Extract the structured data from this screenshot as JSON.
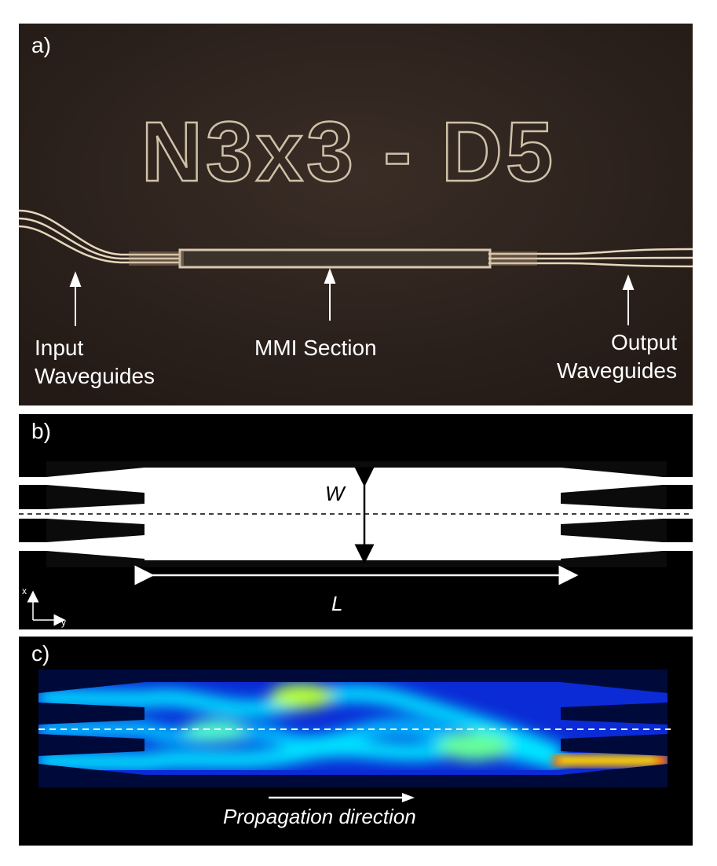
{
  "panel_a": {
    "label": "a)",
    "chip_text": "N3x3 - D5",
    "annotations": {
      "input": [
        "Input",
        "Waveguides"
      ],
      "mmi": "MMI Section",
      "output": [
        "Output",
        "Waveguides"
      ]
    }
  },
  "panel_b": {
    "label": "b)",
    "width_symbol": "W",
    "length_symbol": "L",
    "axis_x": "x",
    "axis_y": "y"
  },
  "panel_c": {
    "label": "c)",
    "propagation_label": "Propagation direction"
  },
  "colors": {
    "photo_bg": "#2a201b",
    "waveguide": "#d9c9b0",
    "field_low": "#001a66",
    "field_mid": "#00c8ff",
    "field_high": "#ffd000"
  }
}
